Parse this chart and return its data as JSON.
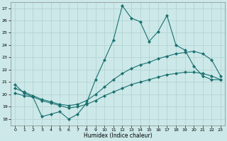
{
  "xlabel": "Humidex (Indice chaleur)",
  "bg_color": "#cce8e8",
  "grid_color": "#b0d0d0",
  "line_color": "#1a7070",
  "xlim": [
    -0.5,
    23.5
  ],
  "ylim": [
    17.5,
    27.5
  ],
  "xticks": [
    0,
    1,
    2,
    3,
    4,
    5,
    6,
    7,
    8,
    9,
    10,
    11,
    12,
    13,
    14,
    15,
    16,
    17,
    18,
    19,
    20,
    21,
    22,
    23
  ],
  "yticks": [
    18,
    19,
    20,
    21,
    22,
    23,
    24,
    25,
    26,
    27
  ],
  "line1": {
    "x": [
      0,
      1,
      2,
      3,
      4,
      5,
      6,
      7,
      8,
      9,
      10,
      11,
      12,
      13,
      14,
      15,
      16,
      17,
      18,
      19,
      20,
      21,
      22,
      23
    ],
    "y": [
      20.8,
      20.1,
      19.8,
      18.2,
      18.4,
      18.6,
      18.0,
      18.4,
      19.3,
      21.2,
      22.8,
      24.4,
      27.2,
      26.2,
      25.9,
      24.3,
      25.1,
      26.4,
      24.0,
      23.6,
      22.3,
      21.5,
      21.2,
      21.2
    ]
  },
  "line2": {
    "x": [
      0,
      1,
      2,
      3,
      4,
      5,
      6,
      7,
      8,
      9,
      10,
      11,
      12,
      13,
      14,
      15,
      16,
      17,
      18,
      19,
      20,
      21,
      22,
      23
    ],
    "y": [
      20.5,
      20.2,
      19.9,
      19.6,
      19.4,
      19.2,
      19.1,
      19.2,
      19.5,
      20.0,
      20.6,
      21.2,
      21.7,
      22.1,
      22.4,
      22.6,
      22.9,
      23.1,
      23.3,
      23.4,
      23.5,
      23.3,
      22.8,
      21.5
    ]
  },
  "line3": {
    "x": [
      0,
      1,
      2,
      3,
      4,
      5,
      6,
      7,
      8,
      9,
      10,
      11,
      12,
      13,
      14,
      15,
      16,
      17,
      18,
      19,
      20,
      21,
      22,
      23
    ],
    "y": [
      20.1,
      19.9,
      19.8,
      19.5,
      19.3,
      19.1,
      18.9,
      19.0,
      19.2,
      19.5,
      19.9,
      20.2,
      20.5,
      20.8,
      21.0,
      21.2,
      21.4,
      21.6,
      21.7,
      21.8,
      21.8,
      21.7,
      21.5,
      21.2
    ]
  }
}
